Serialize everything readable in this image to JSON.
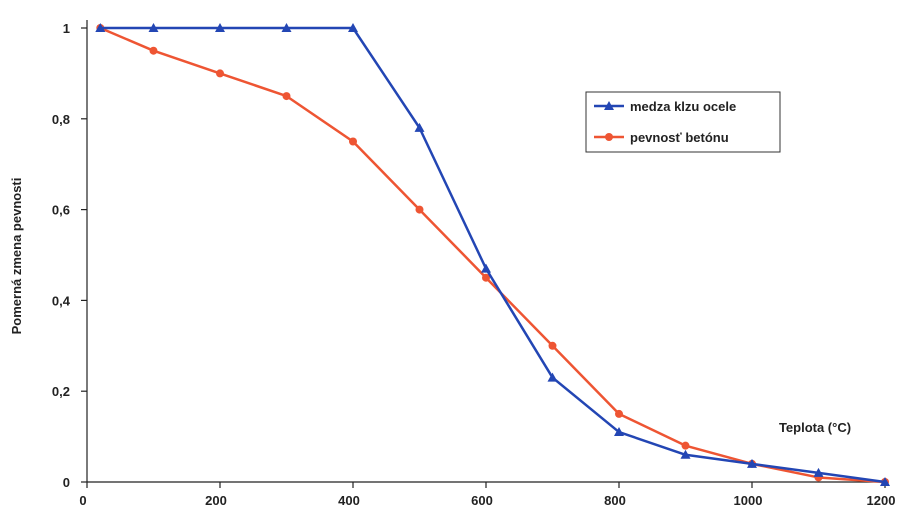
{
  "chart_data": {
    "type": "line",
    "xlabel": "Teplota (°C)",
    "ylabel": "Pomerná zmena pevnosti",
    "xlim": [
      0,
      1200
    ],
    "ylim": [
      0,
      1
    ],
    "x_ticks": [
      0,
      200,
      400,
      600,
      800,
      1000,
      1200
    ],
    "x_tick_labels": [
      "0",
      "200",
      "400",
      "600",
      "800",
      "1000",
      "1200"
    ],
    "y_ticks": [
      0,
      0.2,
      0.4,
      0.6,
      0.8,
      1
    ],
    "y_tick_labels": [
      "0",
      "0,2",
      "0,4",
      "0,6",
      "0,8",
      "1"
    ],
    "grid": false,
    "legend_position": "top-right",
    "series": [
      {
        "name": "medza klzu ocele",
        "color": "#2346b4",
        "marker": "triangle",
        "x": [
          20,
          100,
          200,
          300,
          400,
          500,
          600,
          700,
          800,
          900,
          1000,
          1100,
          1200
        ],
        "values": [
          1,
          1,
          1,
          1,
          1,
          0.78,
          0.47,
          0.23,
          0.11,
          0.06,
          0.04,
          0.02,
          0
        ]
      },
      {
        "name": "pevnosť betónu",
        "color": "#ee5533",
        "marker": "circle",
        "x": [
          20,
          100,
          200,
          300,
          400,
          500,
          600,
          700,
          800,
          900,
          1000,
          1100,
          1200
        ],
        "values": [
          1,
          0.95,
          0.9,
          0.85,
          0.75,
          0.6,
          0.45,
          0.3,
          0.15,
          0.08,
          0.04,
          0.01,
          0
        ]
      }
    ]
  }
}
